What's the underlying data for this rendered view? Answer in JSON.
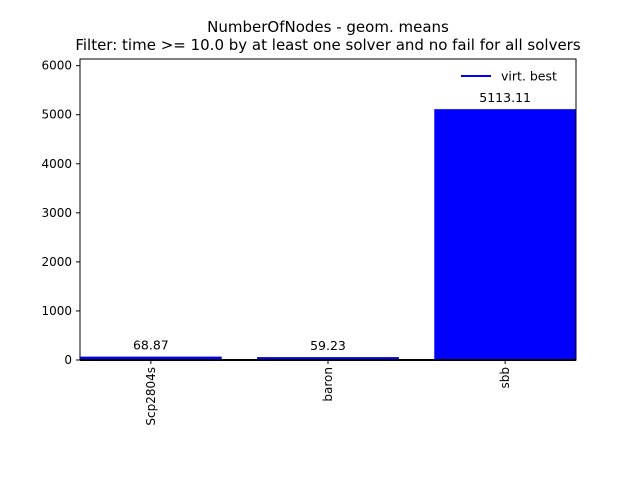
{
  "chart_data": {
    "type": "bar",
    "title_line1": "NumberOfNodes - geom. means",
    "title_line2": "Filter: time >= 10.0 by at least one solver and no fail for all solvers",
    "xlabel": "",
    "ylabel": "",
    "categories": [
      "Scp2804s",
      "baron",
      "sbb"
    ],
    "series": [
      {
        "name": "virt. best",
        "values": [
          68.87,
          59.23,
          5113.11
        ],
        "color": "#0000ff"
      }
    ],
    "data_labels": [
      "68.87",
      "59.23",
      "5113.11"
    ],
    "ylim": [
      0,
      6135.7
    ],
    "yticks": [
      0,
      1000,
      2000,
      3000,
      4000,
      5000,
      6000
    ],
    "ytick_labels": [
      "0",
      "1000",
      "2000",
      "3000",
      "4000",
      "5000",
      "6000"
    ],
    "grid": false,
    "legend_position": "top-right",
    "x_tick_rotation": "vertical"
  }
}
